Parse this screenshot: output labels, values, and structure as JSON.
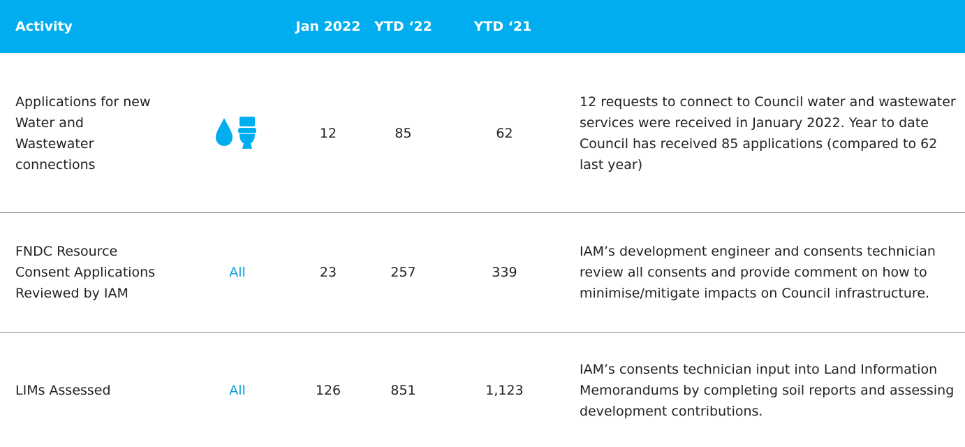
{
  "header": {
    "activity": "Activity",
    "jan2022": "Jan 2022",
    "ytd22": "YTD ‘22",
    "ytd21": "YTD ‘21"
  },
  "rows": [
    {
      "activity": "Applications for new Water and Wastewater connections",
      "jan2022": "12",
      "ytd22": "85",
      "ytd21": "62",
      "description": "12 requests to connect to Council water and wastewater services were received in January 2022.  Year to date Council has received 85 applications (compared to 62 last year)"
    },
    {
      "activity": "FNDC Resource Consent Applications Reviewed by IAM",
      "scope": "All",
      "jan2022": "23",
      "ytd22": "257",
      "ytd21": "339",
      "description": "IAM’s development engineer and consents technician review all consents and provide comment on how to minimise/mitigate impacts on Council infrastructure."
    },
    {
      "activity": "LIMs Assessed",
      "scope": "All",
      "jan2022": "126",
      "ytd22": "851",
      "ytd21": "1,123",
      "description": "IAM’s consents technician input into Land Information Memorandums by completing soil reports and assessing development contributions."
    }
  ]
}
